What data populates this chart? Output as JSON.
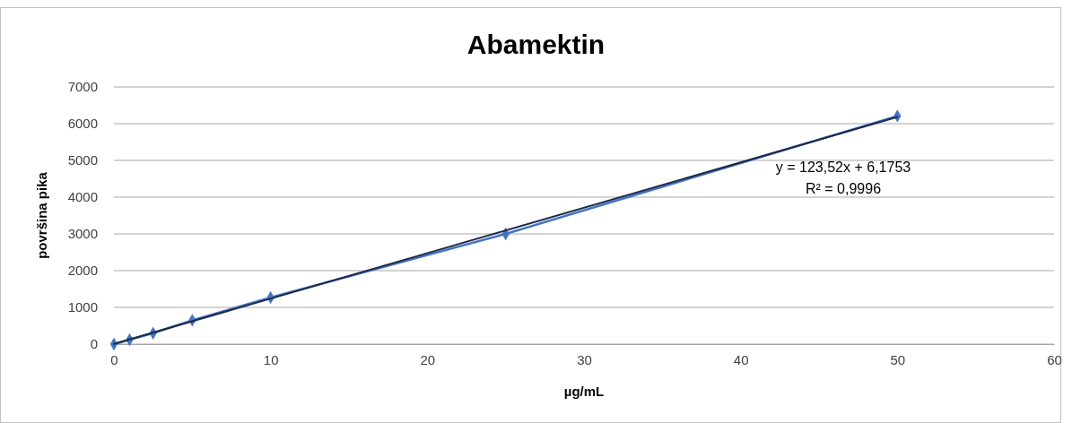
{
  "chart_data": {
    "type": "line",
    "title": "Abamektin",
    "xlabel": "µg/mL",
    "ylabel": "površina pika",
    "x": [
      0,
      1,
      2.5,
      5,
      10,
      25,
      50
    ],
    "series": [
      {
        "color": "#4472c4",
        "values": [
          0,
          120,
          300,
          650,
          1270,
          3000,
          6210
        ],
        "marker": "diamond"
      },
      {
        "type": "line",
        "color": "#1c2a48",
        "x": [
          0,
          50
        ],
        "values": [
          6,
          6182
        ],
        "marker": "none"
      }
    ],
    "annotations": [
      "y = 123,52x + 6,1753",
      "R² = 0,9996"
    ],
    "xlim": [
      0,
      60
    ],
    "xticks": [
      0,
      10,
      20,
      30,
      40,
      50,
      60
    ],
    "ylim": [
      0,
      7000
    ],
    "yticks": [
      0,
      1000,
      2000,
      3000,
      4000,
      5000,
      6000,
      7000
    ],
    "grid": "y",
    "line_style": "solid"
  }
}
